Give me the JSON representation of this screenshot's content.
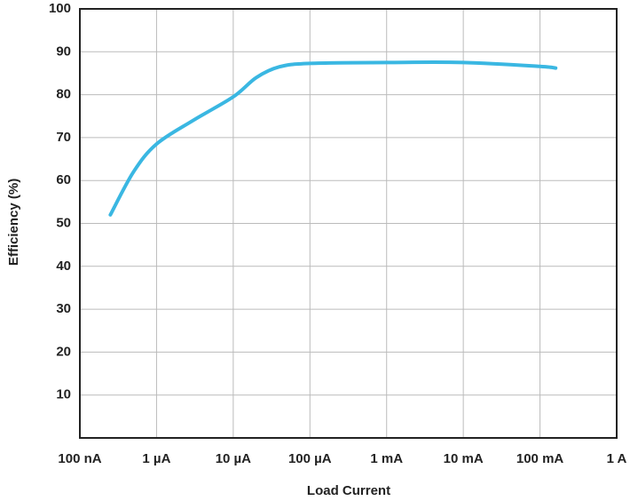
{
  "chart_data": {
    "type": "line",
    "x_label": "Load Current",
    "y_label": "Efficiency (%)",
    "log_x": true,
    "grid": true,
    "xlim": [
      1e-07,
      1
    ],
    "ylim": [
      0,
      100
    ],
    "xticks": [
      {
        "value": 1e-07,
        "label": "100 nA"
      },
      {
        "value": 1e-06,
        "label": "1 µA"
      },
      {
        "value": 1e-05,
        "label": "10 µA"
      },
      {
        "value": 0.0001,
        "label": "100 µA"
      },
      {
        "value": 0.001,
        "label": "1 mA"
      },
      {
        "value": 0.01,
        "label": "10 mA"
      },
      {
        "value": 0.1,
        "label": "100 mA"
      },
      {
        "value": 1,
        "label": "1 A"
      }
    ],
    "yticks": [
      10,
      20,
      30,
      40,
      50,
      60,
      70,
      80,
      90,
      100
    ],
    "series": [
      {
        "color": "#3ab7e2",
        "x": [
          2.5e-07,
          5e-07,
          1e-06,
          3e-06,
          1e-05,
          2e-05,
          4e-05,
          0.0001,
          0.001,
          0.01,
          0.1,
          0.16
        ],
        "values": [
          52,
          62,
          68.5,
          74,
          79.5,
          84,
          86.5,
          87.3,
          87.5,
          87.5,
          86.6,
          86.2
        ]
      }
    ]
  }
}
